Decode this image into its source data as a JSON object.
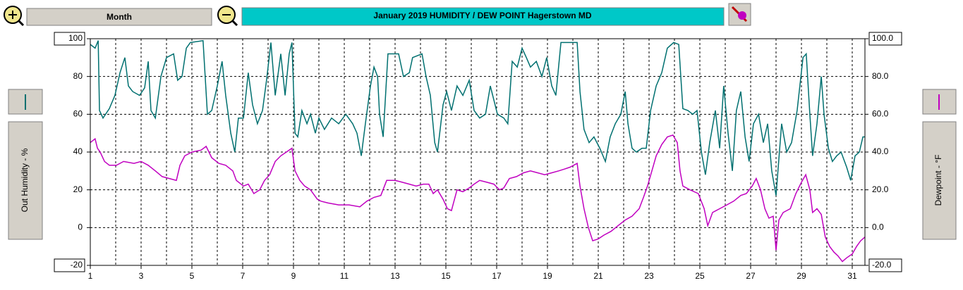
{
  "toolbar": {
    "range_button": "Month"
  },
  "chart_data": {
    "type": "line",
    "title": "January 2019     HUMIDITY / DEW POINT  Hagerstown MD",
    "xlim": [
      1,
      31.5
    ],
    "xticks": [
      1,
      3,
      5,
      7,
      9,
      11,
      13,
      15,
      17,
      19,
      21,
      23,
      25,
      27,
      29,
      31
    ],
    "ylim": [
      -20,
      100
    ],
    "yticks": [
      -20,
      0,
      20,
      40,
      60,
      80,
      100
    ],
    "y2lim": [
      -20,
      100
    ],
    "y2ticks": [
      {
        "value": -20,
        "label": "-20.0"
      },
      {
        "value": 0,
        "label": "0.0"
      },
      {
        "value": 20,
        "label": "20.0"
      },
      {
        "value": 40,
        "label": "40.0"
      },
      {
        "value": 60,
        "label": "60.0"
      },
      {
        "value": 80,
        "label": "80.0"
      },
      {
        "value": 100,
        "label": "100.0"
      }
    ],
    "grid": true,
    "series": [
      {
        "name": "Out Humidity - %",
        "color": "#007070",
        "x": [
          1.0,
          1.19,
          1.31,
          1.36,
          1.5,
          1.75,
          1.97,
          2.17,
          2.36,
          2.5,
          2.67,
          2.94,
          3.14,
          3.28,
          3.39,
          3.56,
          3.78,
          4.0,
          4.28,
          4.44,
          4.61,
          4.78,
          4.94,
          5.44,
          5.61,
          5.78,
          6.0,
          6.19,
          6.33,
          6.53,
          6.69,
          6.83,
          7.03,
          7.22,
          7.39,
          7.58,
          7.78,
          7.94,
          8.11,
          8.28,
          8.5,
          8.67,
          8.83,
          8.94,
          9.06,
          9.17,
          9.33,
          9.53,
          9.67,
          9.86,
          10.0,
          10.22,
          10.5,
          10.78,
          11.06,
          11.33,
          11.5,
          11.67,
          11.83,
          12.03,
          12.17,
          12.31,
          12.39,
          12.53,
          12.72,
          13.14,
          13.33,
          13.56,
          13.69,
          14.06,
          14.22,
          14.39,
          14.56,
          14.67,
          14.89,
          15.03,
          15.22,
          15.44,
          15.67,
          15.92,
          16.11,
          16.33,
          16.56,
          16.75,
          17.03,
          17.28,
          17.44,
          17.61,
          17.81,
          18.0,
          18.17,
          18.33,
          18.56,
          18.78,
          18.97,
          19.17,
          19.33,
          19.53,
          20.17,
          20.28,
          20.44,
          20.64,
          20.83,
          21.06,
          21.28,
          21.47,
          21.67,
          21.89,
          22.06,
          22.17,
          22.33,
          22.5,
          22.72,
          22.89,
          23.06,
          23.28,
          23.5,
          23.72,
          23.97,
          24.17,
          24.33,
          24.53,
          24.72,
          24.89,
          25.06,
          25.22,
          25.39,
          25.61,
          25.78,
          25.94,
          26.11,
          26.28,
          26.44,
          26.61,
          26.78,
          26.94,
          27.11,
          27.31,
          27.5,
          27.67,
          27.83,
          28.0,
          28.22,
          28.42,
          28.61,
          28.83,
          29.06,
          29.19,
          29.33,
          29.44,
          29.61,
          29.78,
          29.89,
          30.06,
          30.22,
          30.39,
          30.56,
          30.78,
          30.94,
          31.11,
          31.28,
          31.42,
          31.5
        ],
        "values": [
          97,
          95,
          99,
          62,
          58,
          63,
          70,
          82,
          90,
          75,
          72,
          70,
          74,
          88,
          62,
          58,
          80,
          90,
          92,
          78,
          80,
          95,
          98,
          99,
          60,
          62,
          75,
          88,
          70,
          50,
          40,
          58,
          58,
          82,
          65,
          55,
          62,
          78,
          98,
          70,
          92,
          70,
          92,
          98,
          50,
          48,
          62,
          55,
          60,
          50,
          58,
          52,
          58,
          55,
          60,
          55,
          50,
          38,
          55,
          75,
          85,
          80,
          60,
          48,
          92,
          92,
          80,
          82,
          90,
          92,
          80,
          70,
          45,
          40,
          65,
          72,
          62,
          75,
          70,
          78,
          62,
          58,
          60,
          75,
          60,
          58,
          55,
          88,
          85,
          95,
          90,
          85,
          88,
          80,
          90,
          75,
          70,
          98,
          98,
          72,
          52,
          45,
          48,
          42,
          35,
          48,
          55,
          60,
          72,
          55,
          42,
          40,
          42,
          42,
          62,
          75,
          82,
          95,
          98,
          97,
          63,
          62,
          60,
          62,
          40,
          28,
          45,
          62,
          42,
          75,
          50,
          30,
          62,
          72,
          48,
          35,
          55,
          60,
          45,
          55,
          30,
          17,
          55,
          40,
          45,
          62,
          90,
          92,
          60,
          38,
          55,
          80,
          60,
          42,
          35,
          38,
          40,
          32,
          25,
          38,
          40,
          48,
          48
        ]
      },
      {
        "name": "Dewpoint - °F",
        "color": "#c000c0",
        "axis": "y2",
        "x": [
          1.0,
          1.19,
          1.28,
          1.39,
          1.56,
          1.75,
          2.03,
          2.31,
          2.72,
          3.0,
          3.28,
          3.56,
          3.83,
          4.11,
          4.39,
          4.53,
          4.72,
          5.0,
          5.36,
          5.56,
          5.78,
          6.06,
          6.33,
          6.61,
          6.75,
          7.03,
          7.22,
          7.44,
          7.67,
          7.86,
          8.06,
          8.28,
          8.5,
          8.72,
          8.94,
          9.06,
          9.25,
          9.44,
          9.67,
          9.94,
          10.08,
          10.36,
          10.78,
          11.19,
          11.61,
          11.89,
          12.17,
          12.44,
          12.67,
          13.0,
          13.28,
          13.56,
          13.83,
          14.11,
          14.33,
          14.5,
          14.67,
          14.89,
          15.06,
          15.22,
          15.44,
          15.67,
          15.92,
          16.11,
          16.33,
          16.61,
          16.89,
          17.11,
          17.28,
          17.5,
          17.78,
          18.06,
          18.33,
          18.61,
          18.89,
          19.17,
          19.44,
          19.67,
          19.89,
          20.17,
          20.28,
          20.44,
          20.61,
          20.78,
          21.0,
          21.22,
          21.5,
          21.78,
          22.06,
          22.33,
          22.61,
          22.78,
          22.94,
          23.11,
          23.28,
          23.5,
          23.72,
          23.94,
          24.11,
          24.22,
          24.33,
          24.61,
          24.94,
          25.17,
          25.31,
          25.5,
          25.78,
          26.06,
          26.33,
          26.61,
          26.83,
          27.06,
          27.22,
          27.39,
          27.56,
          27.72,
          27.89,
          28.0,
          28.11,
          28.28,
          28.56,
          28.78,
          29.0,
          29.17,
          29.33,
          29.44,
          29.61,
          29.78,
          29.94,
          30.11,
          30.28,
          30.44,
          30.61,
          30.78,
          31.0,
          31.17,
          31.33,
          31.5
        ],
        "values": [
          45,
          47,
          42,
          40,
          35,
          33,
          33,
          35,
          34,
          35,
          33,
          30,
          27,
          26,
          25,
          33,
          38,
          40,
          41,
          43,
          37,
          34,
          33,
          30,
          25,
          22,
          23,
          18,
          20,
          25,
          28,
          35,
          38,
          40,
          42,
          30,
          25,
          22,
          20,
          15,
          14,
          13,
          12,
          12,
          11,
          14,
          16,
          17,
          25,
          25,
          24,
          23,
          22,
          23,
          23,
          18,
          20,
          15,
          10,
          9,
          20,
          19,
          21,
          23,
          25,
          24,
          23,
          20,
          21,
          26,
          27,
          29,
          30,
          29,
          28,
          29,
          30,
          31,
          32,
          34,
          22,
          10,
          0,
          -7,
          -6,
          -4,
          -2,
          1,
          4,
          6,
          10,
          16,
          22,
          30,
          38,
          44,
          48,
          49,
          45,
          30,
          22,
          20,
          18,
          10,
          1,
          8,
          10,
          12,
          14,
          17,
          18,
          22,
          26,
          20,
          10,
          5,
          6,
          -12,
          4,
          8,
          10,
          18,
          24,
          28,
          20,
          8,
          10,
          7,
          -5,
          -10,
          -13,
          -15,
          -18,
          -16,
          -14,
          -10,
          -7,
          -5
        ]
      }
    ]
  }
}
